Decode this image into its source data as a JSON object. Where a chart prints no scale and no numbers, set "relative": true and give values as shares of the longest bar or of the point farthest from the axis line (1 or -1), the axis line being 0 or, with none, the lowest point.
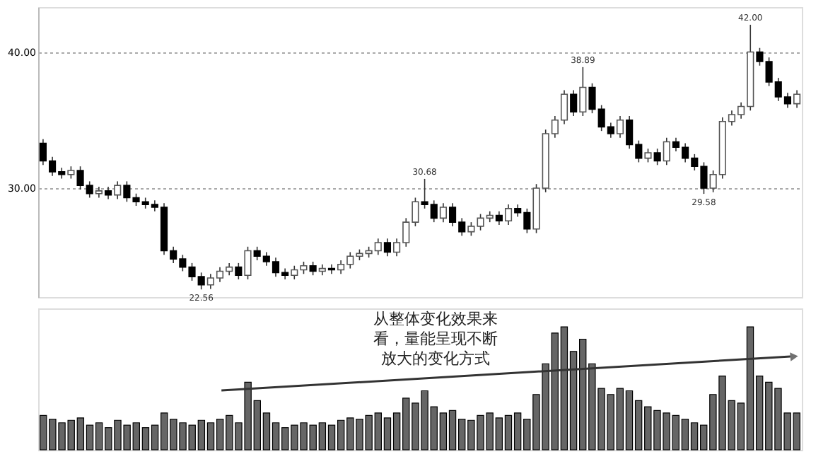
{
  "chart_data": [
    {
      "type": "candlestick",
      "categories": [
        null,
        null,
        null,
        null,
        null,
        null,
        null,
        null,
        null,
        null,
        null,
        null,
        null,
        null,
        null,
        null,
        null,
        null,
        null,
        null,
        null,
        null,
        null,
        null,
        null,
        null,
        null,
        null,
        null,
        null,
        null,
        null,
        null,
        null,
        null,
        null,
        null,
        null,
        null,
        null,
        null,
        null,
        null,
        null,
        null,
        null,
        null,
        null,
        null,
        null,
        null,
        null,
        null,
        null,
        null,
        null,
        null,
        null,
        null,
        null,
        null,
        null,
        null,
        null,
        null,
        null,
        null,
        null,
        null,
        null,
        null,
        null,
        null,
        null,
        null,
        null,
        null,
        null,
        null,
        null,
        null,
        null
      ],
      "ohlc": [
        [
          33.3,
          33.6,
          31.7,
          32.0
        ],
        [
          32.0,
          32.3,
          30.9,
          31.2
        ],
        [
          31.2,
          31.5,
          30.7,
          31.0
        ],
        [
          31.0,
          31.6,
          30.7,
          31.3
        ],
        [
          31.3,
          31.6,
          29.9,
          30.2
        ],
        [
          30.2,
          30.5,
          29.3,
          29.6
        ],
        [
          29.6,
          30.1,
          29.3,
          29.8
        ],
        [
          29.8,
          30.1,
          29.2,
          29.5
        ],
        [
          29.5,
          30.5,
          29.2,
          30.2
        ],
        [
          30.2,
          30.5,
          29.0,
          29.3
        ],
        [
          29.3,
          29.6,
          28.7,
          29.0
        ],
        [
          29.0,
          29.3,
          28.5,
          28.8
        ],
        [
          28.8,
          29.1,
          28.3,
          28.6
        ],
        [
          28.6,
          28.9,
          25.1,
          25.4
        ],
        [
          25.4,
          25.7,
          24.5,
          24.8
        ],
        [
          24.8,
          25.1,
          23.9,
          24.2
        ],
        [
          24.2,
          24.5,
          23.2,
          23.5
        ],
        [
          23.5,
          23.8,
          22.56,
          22.9
        ],
        [
          22.9,
          23.7,
          22.6,
          23.4
        ],
        [
          23.4,
          24.2,
          23.1,
          23.9
        ],
        [
          23.9,
          24.5,
          23.6,
          24.2
        ],
        [
          24.2,
          24.5,
          23.3,
          23.6
        ],
        [
          23.6,
          25.7,
          23.3,
          25.4
        ],
        [
          25.4,
          25.7,
          24.7,
          25.0
        ],
        [
          25.0,
          25.3,
          24.3,
          24.6
        ],
        [
          24.6,
          24.9,
          23.5,
          23.8
        ],
        [
          23.8,
          24.1,
          23.3,
          23.6
        ],
        [
          23.6,
          24.3,
          23.3,
          24.0
        ],
        [
          24.0,
          24.6,
          23.7,
          24.3
        ],
        [
          24.3,
          24.6,
          23.6,
          23.9
        ],
        [
          23.9,
          24.4,
          23.6,
          24.1
        ],
        [
          24.1,
          24.4,
          23.7,
          24.0
        ],
        [
          24.0,
          24.7,
          23.7,
          24.4
        ],
        [
          24.4,
          25.3,
          24.1,
          25.0
        ],
        [
          25.0,
          25.5,
          24.7,
          25.2
        ],
        [
          25.2,
          25.7,
          24.9,
          25.4
        ],
        [
          25.4,
          26.3,
          25.1,
          26.0
        ],
        [
          26.0,
          26.3,
          25.0,
          25.3
        ],
        [
          25.3,
          26.3,
          25.0,
          26.0
        ],
        [
          26.0,
          27.8,
          25.7,
          27.5
        ],
        [
          27.5,
          29.3,
          27.2,
          29.0
        ],
        [
          29.0,
          30.68,
          28.5,
          28.8
        ],
        [
          28.8,
          29.1,
          27.5,
          27.8
        ],
        [
          27.8,
          28.9,
          27.5,
          28.6
        ],
        [
          28.6,
          28.9,
          27.2,
          27.5
        ],
        [
          27.5,
          27.8,
          26.5,
          26.8
        ],
        [
          26.8,
          27.5,
          26.5,
          27.2
        ],
        [
          27.2,
          28.1,
          26.9,
          27.8
        ],
        [
          27.8,
          28.3,
          27.5,
          28.0
        ],
        [
          28.0,
          28.3,
          27.3,
          27.6
        ],
        [
          27.6,
          28.8,
          27.3,
          28.5
        ],
        [
          28.5,
          28.8,
          27.9,
          28.2
        ],
        [
          28.2,
          28.5,
          26.7,
          27.0
        ],
        [
          27.0,
          30.3,
          26.7,
          30.0
        ],
        [
          30.0,
          34.3,
          29.7,
          34.0
        ],
        [
          34.0,
          35.3,
          33.7,
          35.0
        ],
        [
          35.0,
          37.2,
          34.7,
          36.9
        ],
        [
          36.9,
          37.2,
          35.3,
          35.6
        ],
        [
          35.6,
          38.89,
          35.3,
          37.4
        ],
        [
          37.4,
          37.7,
          35.5,
          35.8
        ],
        [
          35.8,
          36.1,
          34.2,
          34.5
        ],
        [
          34.5,
          34.8,
          33.7,
          34.0
        ],
        [
          34.0,
          35.3,
          33.7,
          35.0
        ],
        [
          35.0,
          35.3,
          32.9,
          33.2
        ],
        [
          33.2,
          33.5,
          31.9,
          32.2
        ],
        [
          32.2,
          32.9,
          31.9,
          32.6
        ],
        [
          32.6,
          32.9,
          31.7,
          32.0
        ],
        [
          32.0,
          33.7,
          31.7,
          33.4
        ],
        [
          33.4,
          33.7,
          32.7,
          33.0
        ],
        [
          33.0,
          33.3,
          31.9,
          32.2
        ],
        [
          32.2,
          32.5,
          31.3,
          31.6
        ],
        [
          31.6,
          31.9,
          29.58,
          30.0
        ],
        [
          30.0,
          31.3,
          29.7,
          31.0
        ],
        [
          31.0,
          35.2,
          30.7,
          34.9
        ],
        [
          34.9,
          35.7,
          34.6,
          35.4
        ],
        [
          35.4,
          36.3,
          35.1,
          36.0
        ],
        [
          36.0,
          42.0,
          35.7,
          40.0
        ],
        [
          40.0,
          40.3,
          39.0,
          39.3
        ],
        [
          39.3,
          39.6,
          37.5,
          37.8
        ],
        [
          37.8,
          38.1,
          36.4,
          36.7
        ],
        [
          36.7,
          37.0,
          35.9,
          36.2
        ],
        [
          36.2,
          37.2,
          35.9,
          36.9
        ]
      ],
      "ylim": [
        22,
        43.3
      ],
      "yticks": [
        {
          "value": 30,
          "label": "30.00"
        },
        {
          "value": 40,
          "label": "40.00"
        }
      ],
      "grid": "y",
      "annotations": [
        {
          "text": "42.00",
          "y": 42.0
        },
        {
          "text": "38.89",
          "y": 38.89
        },
        {
          "text": "30.68",
          "y": 30.68
        },
        {
          "text": "29.58",
          "y": 29.58
        },
        {
          "text": "22.56",
          "y": 22.56
        }
      ]
    },
    {
      "type": "bar",
      "relative": true,
      "categories": [
        null,
        null,
        null,
        null,
        null,
        null,
        null,
        null,
        null,
        null,
        null,
        null,
        null,
        null,
        null,
        null,
        null,
        null,
        null,
        null,
        null,
        null,
        null,
        null,
        null,
        null,
        null,
        null,
        null,
        null,
        null,
        null,
        null,
        null,
        null,
        null,
        null,
        null,
        null,
        null,
        null,
        null,
        null,
        null,
        null,
        null,
        null,
        null,
        null,
        null,
        null,
        null,
        null,
        null,
        null,
        null,
        null,
        null,
        null,
        null,
        null,
        null,
        null,
        null,
        null,
        null,
        null,
        null,
        null,
        null,
        null,
        null,
        null,
        null,
        null,
        null,
        null,
        null,
        null,
        null,
        null,
        null
      ],
      "values": [
        0.28,
        0.25,
        0.22,
        0.24,
        0.26,
        0.2,
        0.22,
        0.18,
        0.24,
        0.2,
        0.22,
        0.18,
        0.2,
        0.3,
        0.25,
        0.22,
        0.2,
        0.24,
        0.22,
        0.25,
        0.28,
        0.22,
        0.55,
        0.4,
        0.3,
        0.22,
        0.18,
        0.2,
        0.22,
        0.2,
        0.22,
        0.2,
        0.24,
        0.26,
        0.25,
        0.28,
        0.3,
        0.26,
        0.3,
        0.42,
        0.38,
        0.48,
        0.35,
        0.3,
        0.32,
        0.25,
        0.24,
        0.28,
        0.3,
        0.26,
        0.28,
        0.3,
        0.25,
        0.45,
        0.7,
        0.95,
        1.0,
        0.8,
        0.9,
        0.7,
        0.5,
        0.45,
        0.5,
        0.48,
        0.4,
        0.35,
        0.32,
        0.3,
        0.28,
        0.25,
        0.22,
        0.2,
        0.45,
        0.6,
        0.4,
        0.38,
        1.0,
        0.6,
        0.55,
        0.5,
        0.3,
        0.3
      ],
      "color": "#666666",
      "annotations": [
        "从整体变化效果来看，量能呈现不断放大的变化方式"
      ]
    }
  ]
}
